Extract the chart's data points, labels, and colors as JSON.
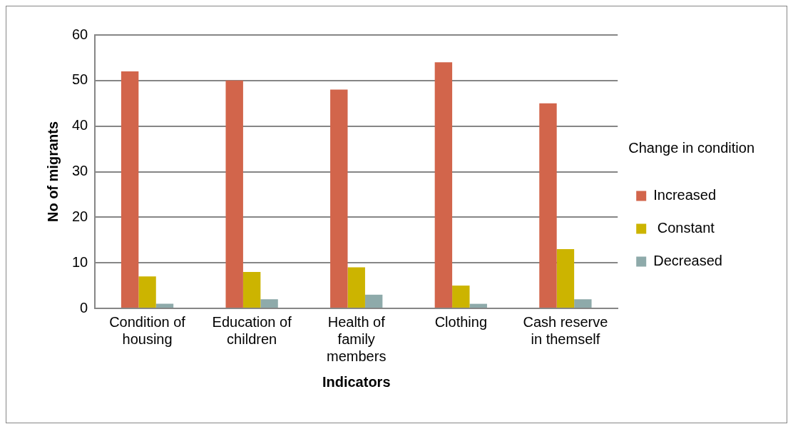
{
  "chart_data": {
    "type": "bar",
    "xlabel": "Indicators",
    "ylabel": "No of migrants",
    "legend_title": "Change in condition",
    "categories": [
      "Condition of housing",
      "Education of children",
      "Health of family members",
      "Clothing",
      "Cash reserve in themself"
    ],
    "series": [
      {
        "name": "Increased",
        "color": "#d2654b",
        "values": [
          52,
          50,
          48,
          54,
          45
        ]
      },
      {
        "name": " Constant",
        "color": "#ccb400",
        "values": [
          7,
          8,
          9,
          5,
          13
        ]
      },
      {
        "name": "Decreased",
        "color": "#8eaaaa",
        "values": [
          1,
          2,
          3,
          1,
          2
        ]
      }
    ],
    "ylim": [
      0,
      60
    ],
    "yticks": [
      0,
      10,
      20,
      30,
      40,
      50,
      60
    ],
    "grid": "y",
    "legend": "right"
  }
}
